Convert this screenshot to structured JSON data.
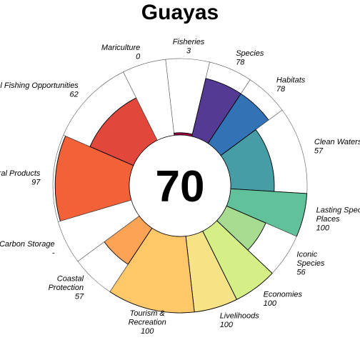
{
  "chart_data": {
    "type": "flower",
    "title": "Guayas",
    "score": "70",
    "max": 100,
    "petals": [
      {
        "label": [
          "Natural Products"
        ],
        "value": 97,
        "value_text": "97",
        "color": "#F26138",
        "width_frac": 0.104
      },
      {
        "label": [
          "Artisanal Fishing Opportunities"
        ],
        "value": 62,
        "value_text": "62",
        "color": "#E1473B",
        "width_frac": 0.104
      },
      {
        "label": [
          "Mariculture"
        ],
        "value": 0,
        "value_text": "0",
        "color": "#D53E4F",
        "width_frac": 0.052
      },
      {
        "label": [
          "Fisheries"
        ],
        "value": 3,
        "value_text": "3",
        "color": "#9E0142",
        "width_frac": 0.052
      },
      {
        "label": [
          "Species"
        ],
        "value": 78,
        "value_text": "78",
        "color": "#553A94",
        "width_frac": 0.052
      },
      {
        "label": [
          "Habitats"
        ],
        "value": 78,
        "value_text": "78",
        "color": "#3273B5",
        "width_frac": 0.052
      },
      {
        "label": [
          "Clean Waters"
        ],
        "value": 57,
        "value_text": "57",
        "color": "#479DA6",
        "width_frac": 0.104
      },
      {
        "label": [
          "Lasting Special",
          "Places"
        ],
        "value": 100,
        "value_text": "100",
        "color": "#60C19A",
        "width_frac": 0.052
      },
      {
        "label": [
          "Iconic",
          "Species"
        ],
        "value": 56,
        "value_text": "56",
        "color": "#A6DB90",
        "width_frac": 0.052
      },
      {
        "label": [
          "Economies"
        ],
        "value": 100,
        "value_text": "100",
        "color": "#D5EE86",
        "width_frac": 0.052
      },
      {
        "label": [
          "Livelihoods"
        ],
        "value": 100,
        "value_text": "100",
        "color": "#F6E385",
        "width_frac": 0.052
      },
      {
        "label": [
          "Tourism &",
          "Recreation"
        ],
        "value": 100,
        "value_text": "100",
        "color": "#FEC869",
        "width_frac": 0.104
      },
      {
        "label": [
          "Coastal",
          "Protection"
        ],
        "value": 57,
        "value_text": "57",
        "color": "#FCA356",
        "width_frac": 0.052
      },
      {
        "label": [
          "Carbon Storage"
        ],
        "value": null,
        "value_text": "-",
        "color": "#F57B47",
        "width_frac": 0.052
      }
    ]
  }
}
